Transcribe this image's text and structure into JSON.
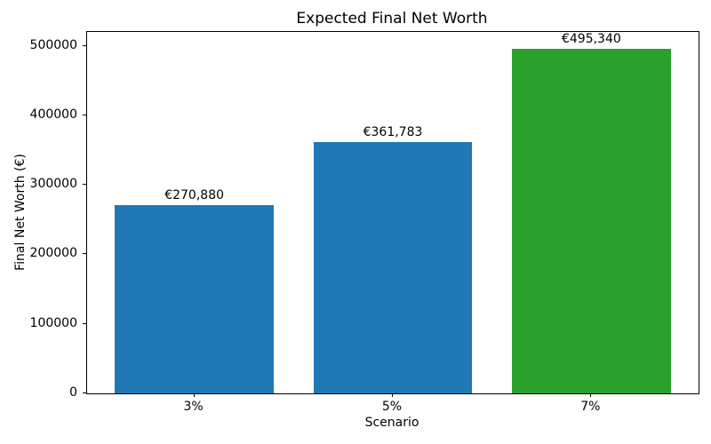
{
  "chart_data": {
    "type": "bar",
    "title": "Expected Final Net Worth",
    "xlabel": "Scenario",
    "ylabel": "Final Net Worth (€)",
    "categories": [
      "3%",
      "5%",
      "7%"
    ],
    "values": [
      270880,
      361783,
      495340
    ],
    "value_labels": [
      "€270,880",
      "€361,783",
      "€495,340"
    ],
    "bar_colors": [
      "#1f77b4",
      "#1f77b4",
      "#2ca02c"
    ],
    "yticks": [
      0,
      100000,
      200000,
      300000,
      400000,
      500000
    ],
    "ytick_labels": [
      "0",
      "100000",
      "200000",
      "300000",
      "400000",
      "500000"
    ],
    "ylim": [
      0,
      520107
    ],
    "grid": false,
    "legend": "none",
    "background_color": "#ffffff",
    "spine_color": "#000000"
  }
}
